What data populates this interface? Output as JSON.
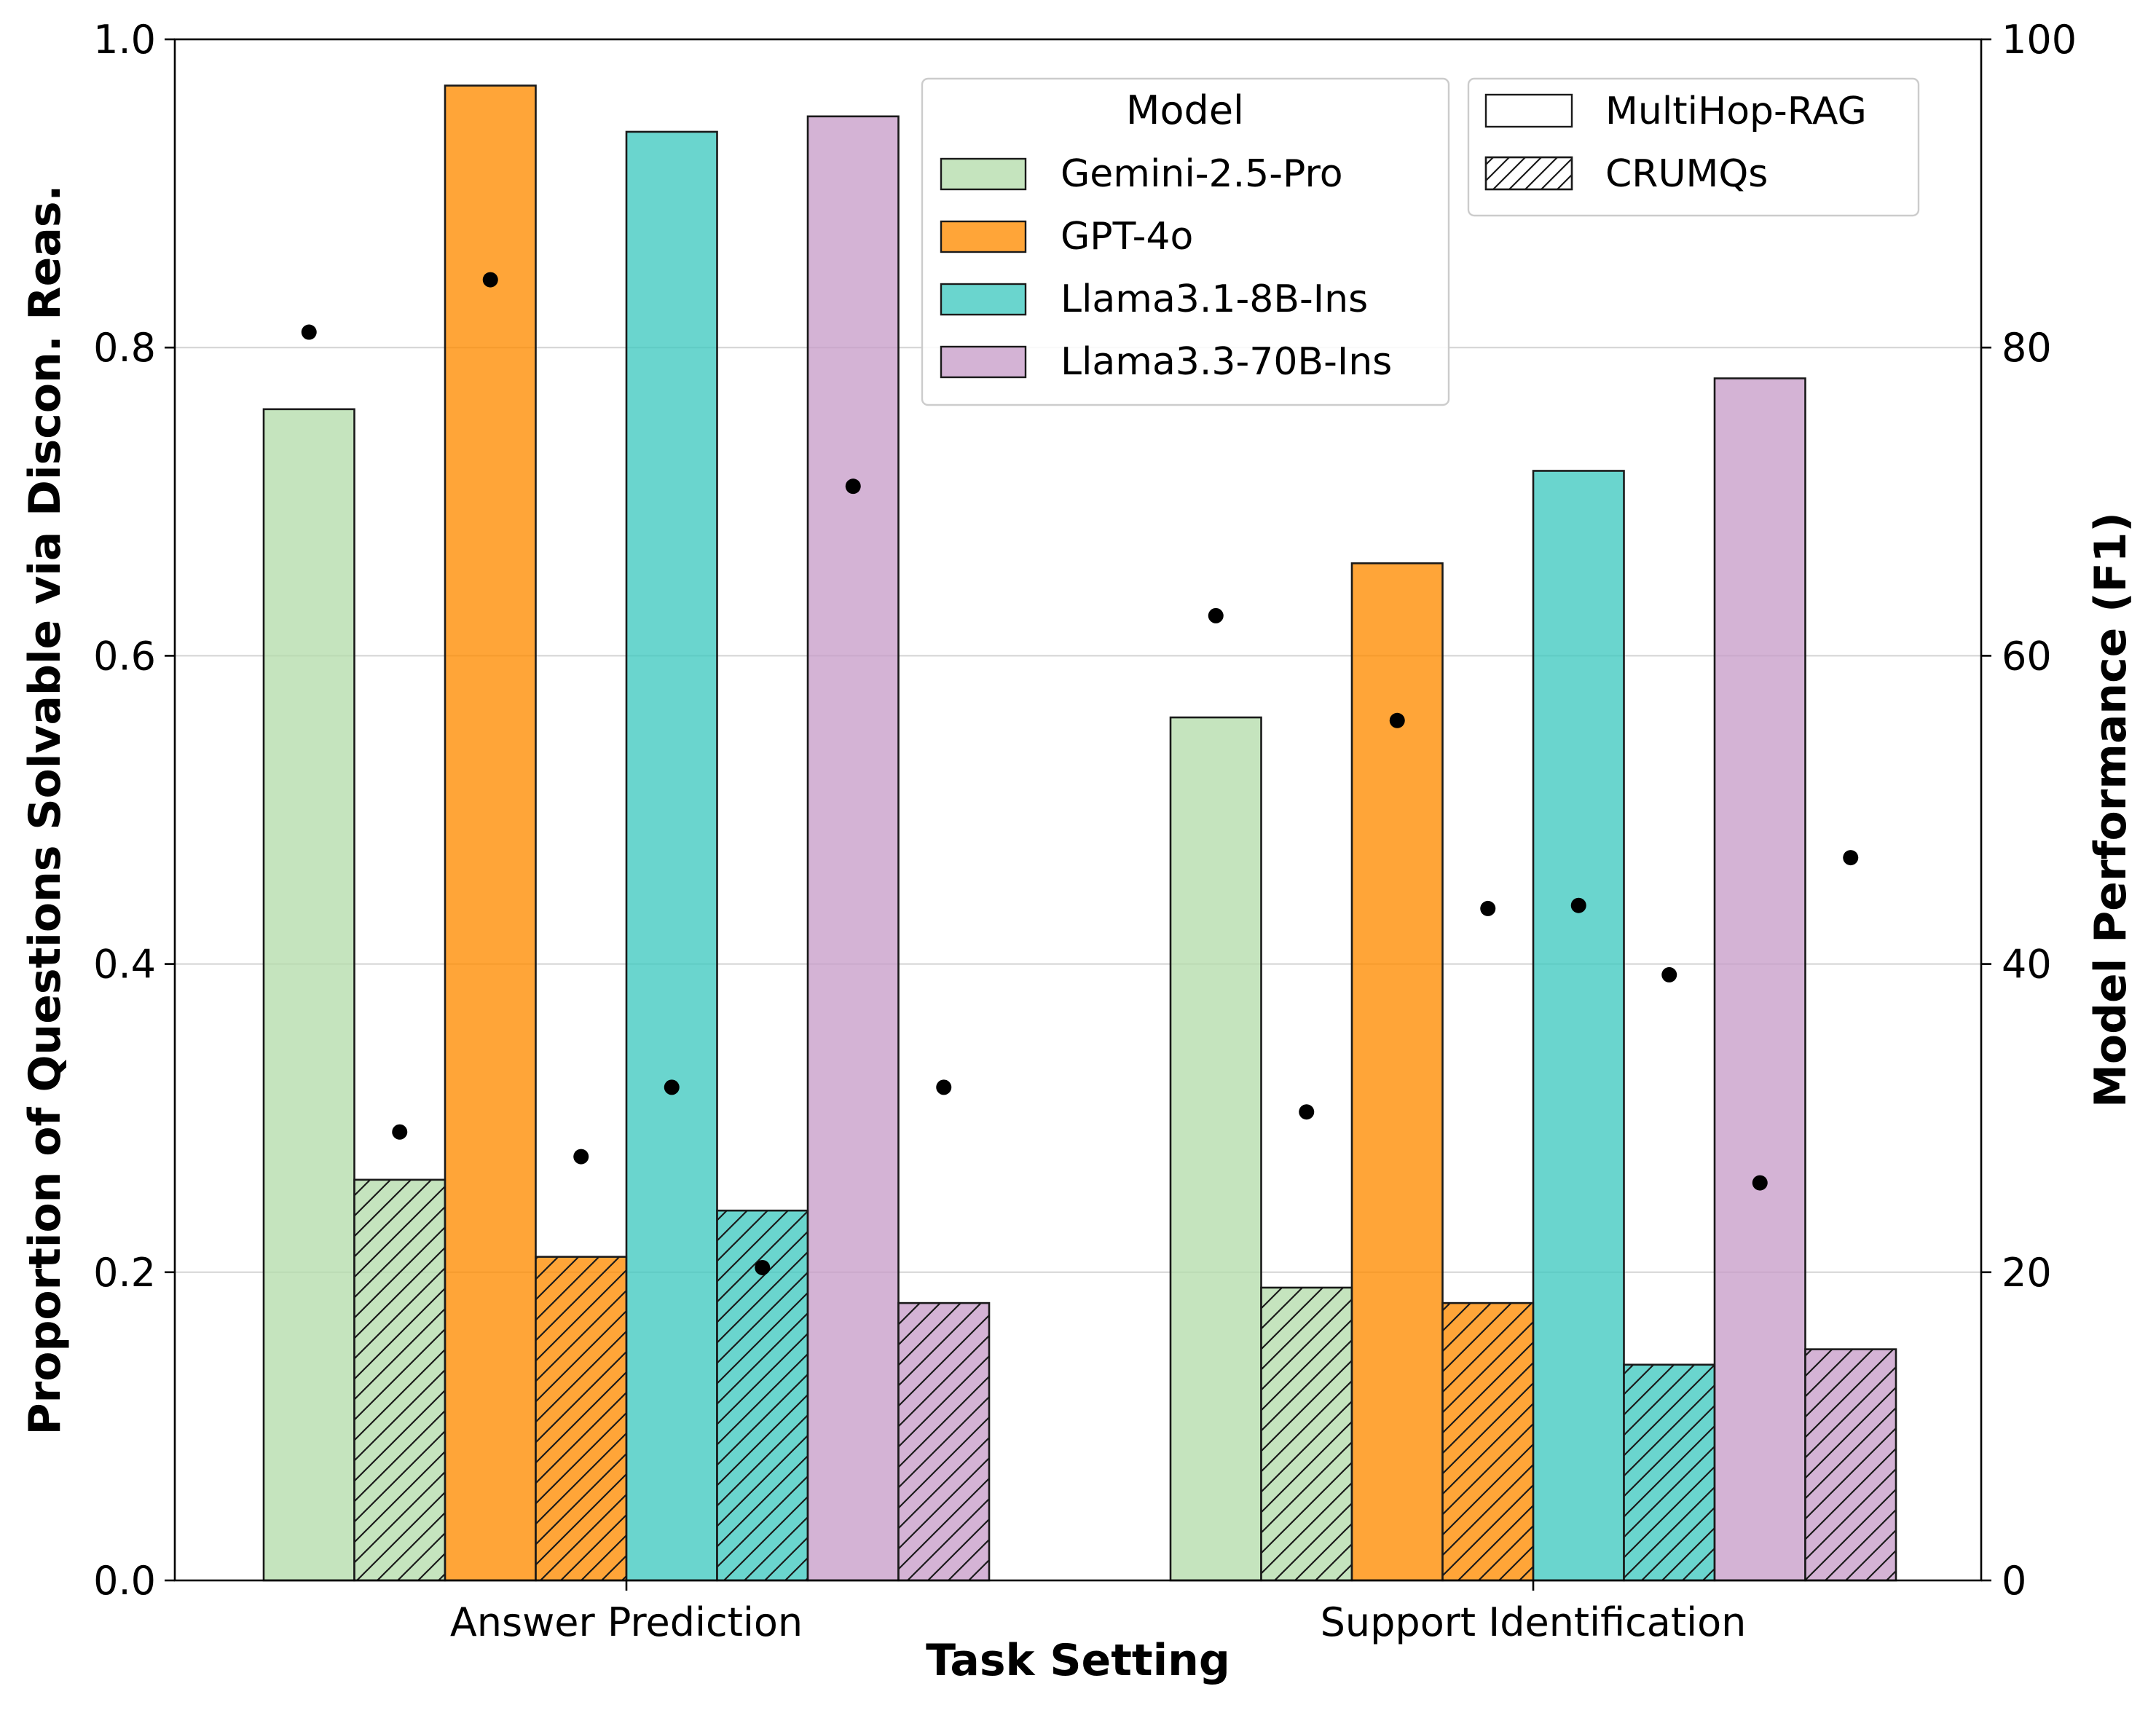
{
  "chart_data": {
    "type": "bar",
    "categories": [
      "Answer Prediction",
      "Support Identification"
    ],
    "xlabel": "Task Setting",
    "ylabel": "Proportion of Questions Solvable via Discon. Reas.",
    "y2label": "Model Performance (F1)",
    "ylim": [
      0,
      1.0
    ],
    "y2lim": [
      0,
      100
    ],
    "yticks": [
      "0.0",
      "0.2",
      "0.4",
      "0.6",
      "0.8",
      "1.0"
    ],
    "y2ticks": [
      "0",
      "20",
      "40",
      "60",
      "80",
      "100"
    ],
    "grid": "horizontal",
    "legend_model_title": "Model",
    "legend_model_placement": "top-center",
    "legend_dataset_placement": "top-right",
    "datasets": [
      {
        "name": "MultiHop-RAG",
        "hatch": "none"
      },
      {
        "name": "CRUMQs",
        "hatch": "diagonal"
      }
    ],
    "series": [
      {
        "name": "Gemini-2.5-Pro",
        "color": "#b5dcac",
        "proportion": {
          "MultiHop-RAG": [
            0.76,
            0.56
          ],
          "CRUMQs": [
            0.26,
            0.19
          ]
        },
        "f1": {
          "MultiHop-RAG": [
            81.0,
            62.6
          ],
          "CRUMQs": [
            29.1,
            30.4
          ]
        }
      },
      {
        "name": "GPT-4o",
        "color": "#ff8c00",
        "proportion": {
          "MultiHop-RAG": [
            0.97,
            0.66
          ],
          "CRUMQs": [
            0.21,
            0.18
          ]
        },
        "f1": {
          "MultiHop-RAG": [
            84.4,
            55.8
          ],
          "CRUMQs": [
            27.5,
            43.6
          ]
        }
      },
      {
        "name": "Llama3.1-8B-Ins",
        "color": "#40c9c0",
        "proportion": {
          "MultiHop-RAG": [
            0.94,
            0.72
          ],
          "CRUMQs": [
            0.24,
            0.14
          ]
        },
        "f1": {
          "MultiHop-RAG": [
            32.0,
            43.8
          ],
          "CRUMQs": [
            20.3,
            39.3
          ]
        }
      },
      {
        "name": "Llama3.3-70B-Ins",
        "color": "#c89ec9",
        "proportion": {
          "MultiHop-RAG": [
            0.95,
            0.78
          ],
          "CRUMQs": [
            0.18,
            0.15
          ]
        },
        "f1": {
          "MultiHop-RAG": [
            71.0,
            25.8
          ],
          "CRUMQs": [
            32.0,
            46.9
          ]
        }
      }
    ]
  }
}
